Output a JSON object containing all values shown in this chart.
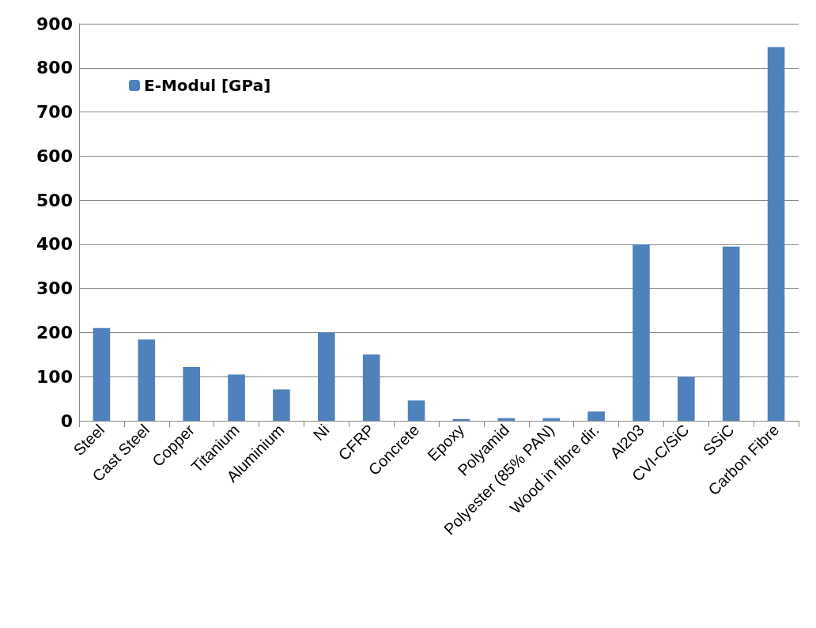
{
  "chart_data": {
    "type": "bar",
    "categories": [
      "Steel",
      "Cast Steel",
      "Copper",
      "Titanium",
      "Aluminium",
      "Ni",
      "CFRP",
      "Concrete",
      "Epoxy",
      "Polyamid",
      "Polyester (85% PAN)",
      "Wood in fibre dir.",
      "Al203",
      "CVI-C/SiC",
      "SSiC",
      "Carbon Fibre"
    ],
    "series": [
      {
        "name": "E-Modul [GPa]",
        "color": "#4f81bd",
        "values": [
          210,
          184,
          122,
          105,
          71,
          200,
          150,
          46,
          4,
          6,
          6,
          21,
          400,
          100,
          395,
          847
        ]
      }
    ],
    "ylim": [
      0,
      900
    ],
    "yticks": [
      0,
      100,
      200,
      300,
      400,
      500,
      600,
      700,
      800,
      900
    ],
    "grid": "y",
    "legend": "top left"
  }
}
